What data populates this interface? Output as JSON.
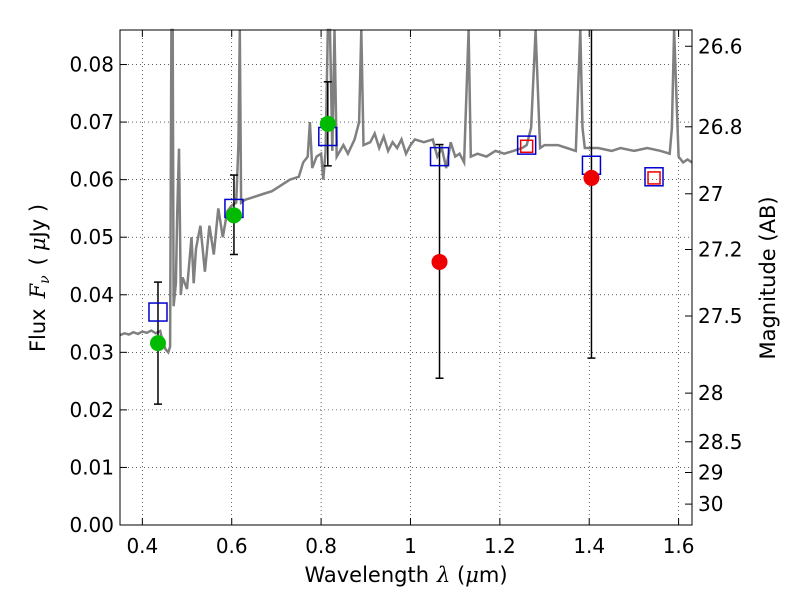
{
  "chart_data": {
    "type": "scatter",
    "xlabel": "Wavelength",
    "xlabel_symbol": "λ",
    "xlabel_unit_open": " (",
    "xlabel_unit_mu": "μ",
    "xlabel_unit_rest": "m)",
    "ylabel": "Flux",
    "ylabel_symbol_F": "F",
    "ylabel_symbol_sub": "ν",
    "ylabel_unit_open": "(",
    "ylabel_unit_mu": "μ",
    "ylabel_unit_rest": "Jy )",
    "y2label": "Magnitude (AB)",
    "xlim": [
      0.35,
      1.63
    ],
    "ylim": [
      0.0,
      0.086
    ],
    "grid": true,
    "x_ticks": [
      {
        "v": 0.4,
        "label": "0.4"
      },
      {
        "v": 0.6,
        "label": "0.6"
      },
      {
        "v": 0.8,
        "label": "0.8"
      },
      {
        "v": 1.0,
        "label": "1"
      },
      {
        "v": 1.2,
        "label": "1.2"
      },
      {
        "v": 1.4,
        "label": "1.4"
      },
      {
        "v": 1.6,
        "label": "1.6"
      }
    ],
    "y_ticks": [
      {
        "v": 0.0,
        "label": "0.00"
      },
      {
        "v": 0.01,
        "label": "0.01"
      },
      {
        "v": 0.02,
        "label": "0.02"
      },
      {
        "v": 0.03,
        "label": "0.03"
      },
      {
        "v": 0.04,
        "label": "0.04"
      },
      {
        "v": 0.05,
        "label": "0.05"
      },
      {
        "v": 0.06,
        "label": "0.06"
      },
      {
        "v": 0.07,
        "label": "0.07"
      },
      {
        "v": 0.08,
        "label": "0.08"
      }
    ],
    "mag_ticks": [
      {
        "mag": 26.6,
        "label": "26.6"
      },
      {
        "mag": 26.8,
        "label": "26.8"
      },
      {
        "mag": 27.0,
        "label": "27"
      },
      {
        "mag": 27.2,
        "label": "27.2"
      },
      {
        "mag": 27.5,
        "label": "27.5"
      },
      {
        "mag": 28.0,
        "label": "28"
      },
      {
        "mag": 28.5,
        "label": "28.5"
      },
      {
        "mag": 29.0,
        "label": "29"
      },
      {
        "mag": 30.0,
        "label": "30"
      }
    ],
    "colors": {
      "spectrum": "#808080",
      "model_box": "#0000cc",
      "detected": "#00bb00",
      "upper": "#ee0000",
      "errorbar": "#000000"
    },
    "spectrum": [
      [
        0.35,
        0.033
      ],
      [
        0.36,
        0.0333
      ],
      [
        0.37,
        0.0331
      ],
      [
        0.38,
        0.0335
      ],
      [
        0.39,
        0.0332
      ],
      [
        0.4,
        0.0336
      ],
      [
        0.41,
        0.0334
      ],
      [
        0.42,
        0.0338
      ],
      [
        0.43,
        0.0333
      ],
      [
        0.44,
        0.0337
      ],
      [
        0.445,
        0.032
      ],
      [
        0.452,
        0.0305
      ],
      [
        0.458,
        0.03
      ],
      [
        0.462,
        0.031
      ],
      [
        0.465,
        0.086
      ],
      [
        0.468,
        0.086
      ],
      [
        0.47,
        0.038
      ],
      [
        0.475,
        0.042
      ],
      [
        0.478,
        0.054
      ],
      [
        0.482,
        0.0654
      ],
      [
        0.486,
        0.04
      ],
      [
        0.49,
        0.043
      ],
      [
        0.5,
        0.041
      ],
      [
        0.51,
        0.05
      ],
      [
        0.515,
        0.042
      ],
      [
        0.52,
        0.048
      ],
      [
        0.53,
        0.052
      ],
      [
        0.54,
        0.044
      ],
      [
        0.55,
        0.052
      ],
      [
        0.56,
        0.047
      ],
      [
        0.57,
        0.055
      ],
      [
        0.58,
        0.05
      ],
      [
        0.59,
        0.0545
      ],
      [
        0.6,
        0.0555
      ],
      [
        0.61,
        0.056
      ],
      [
        0.615,
        0.066
      ],
      [
        0.618,
        0.086
      ],
      [
        0.621,
        0.056
      ],
      [
        0.63,
        0.0565
      ],
      [
        0.65,
        0.057
      ],
      [
        0.67,
        0.0575
      ],
      [
        0.69,
        0.058
      ],
      [
        0.71,
        0.059
      ],
      [
        0.73,
        0.06
      ],
      [
        0.75,
        0.0605
      ],
      [
        0.76,
        0.063
      ],
      [
        0.77,
        0.064
      ],
      [
        0.775,
        0.07
      ],
      [
        0.78,
        0.062
      ],
      [
        0.79,
        0.064
      ],
      [
        0.8,
        0.0645
      ],
      [
        0.805,
        0.06
      ],
      [
        0.81,
        0.065
      ],
      [
        0.815,
        0.086
      ],
      [
        0.82,
        0.086
      ],
      [
        0.825,
        0.065
      ],
      [
        0.83,
        0.086
      ],
      [
        0.835,
        0.064
      ],
      [
        0.85,
        0.066
      ],
      [
        0.86,
        0.0645
      ],
      [
        0.875,
        0.067
      ],
      [
        0.885,
        0.07
      ],
      [
        0.89,
        0.086
      ],
      [
        0.895,
        0.066
      ],
      [
        0.91,
        0.0665
      ],
      [
        0.92,
        0.068
      ],
      [
        0.93,
        0.0655
      ],
      [
        0.94,
        0.0675
      ],
      [
        0.95,
        0.065
      ],
      [
        0.96,
        0.0665
      ],
      [
        0.97,
        0.0655
      ],
      [
        0.98,
        0.067
      ],
      [
        0.99,
        0.0645
      ],
      [
        1.0,
        0.066
      ],
      [
        1.01,
        0.067
      ],
      [
        1.03,
        0.0665
      ],
      [
        1.05,
        0.067
      ],
      [
        1.06,
        0.064
      ],
      [
        1.07,
        0.0655
      ],
      [
        1.08,
        0.062
      ],
      [
        1.09,
        0.0665
      ],
      [
        1.1,
        0.064
      ],
      [
        1.11,
        0.0645
      ],
      [
        1.12,
        0.063
      ],
      [
        1.13,
        0.086
      ],
      [
        1.135,
        0.064
      ],
      [
        1.15,
        0.0645
      ],
      [
        1.17,
        0.064
      ],
      [
        1.19,
        0.065
      ],
      [
        1.21,
        0.0645
      ],
      [
        1.23,
        0.065
      ],
      [
        1.25,
        0.0655
      ],
      [
        1.26,
        0.066
      ],
      [
        1.27,
        0.069
      ],
      [
        1.28,
        0.086
      ],
      [
        1.29,
        0.0655
      ],
      [
        1.3,
        0.066
      ],
      [
        1.33,
        0.066
      ],
      [
        1.35,
        0.0655
      ],
      [
        1.37,
        0.065
      ],
      [
        1.38,
        0.086
      ],
      [
        1.385,
        0.069
      ],
      [
        1.39,
        0.0655
      ],
      [
        1.42,
        0.0655
      ],
      [
        1.45,
        0.065
      ],
      [
        1.47,
        0.0655
      ],
      [
        1.5,
        0.065
      ],
      [
        1.53,
        0.0655
      ],
      [
        1.56,
        0.065
      ],
      [
        1.58,
        0.0645
      ],
      [
        1.585,
        0.069
      ],
      [
        1.59,
        0.086
      ],
      [
        1.6,
        0.064
      ],
      [
        1.61,
        0.063
      ],
      [
        1.62,
        0.0635
      ],
      [
        1.63,
        0.063
      ]
    ],
    "model_boxes": [
      {
        "x": 0.435,
        "y": 0.037
      },
      {
        "x": 0.605,
        "y": 0.055
      },
      {
        "x": 0.815,
        "y": 0.0675
      },
      {
        "x": 1.065,
        "y": 0.064
      },
      {
        "x": 1.26,
        "y": 0.066
      },
      {
        "x": 1.405,
        "y": 0.0625
      },
      {
        "x": 1.545,
        "y": 0.0605
      }
    ],
    "detections": [
      {
        "x": 0.435,
        "y": 0.0316,
        "err_lo": 0.021,
        "err_hi": 0.0422
      },
      {
        "x": 0.605,
        "y": 0.0538,
        "err_lo": 0.047,
        "err_hi": 0.0608
      },
      {
        "x": 0.815,
        "y": 0.0697,
        "err_lo": 0.0624,
        "err_hi": 0.077
      }
    ],
    "upper_points": [
      {
        "x": 1.065,
        "y": 0.0457,
        "err_lo": 0.0255,
        "err_hi": 0.0661
      },
      {
        "x": 1.405,
        "y": 0.0603,
        "err_lo": 0.029,
        "err_hi": 0.086
      }
    ],
    "red_squares": [
      {
        "x": 1.26,
        "y": 0.0658
      },
      {
        "x": 1.545,
        "y": 0.0603
      }
    ]
  }
}
